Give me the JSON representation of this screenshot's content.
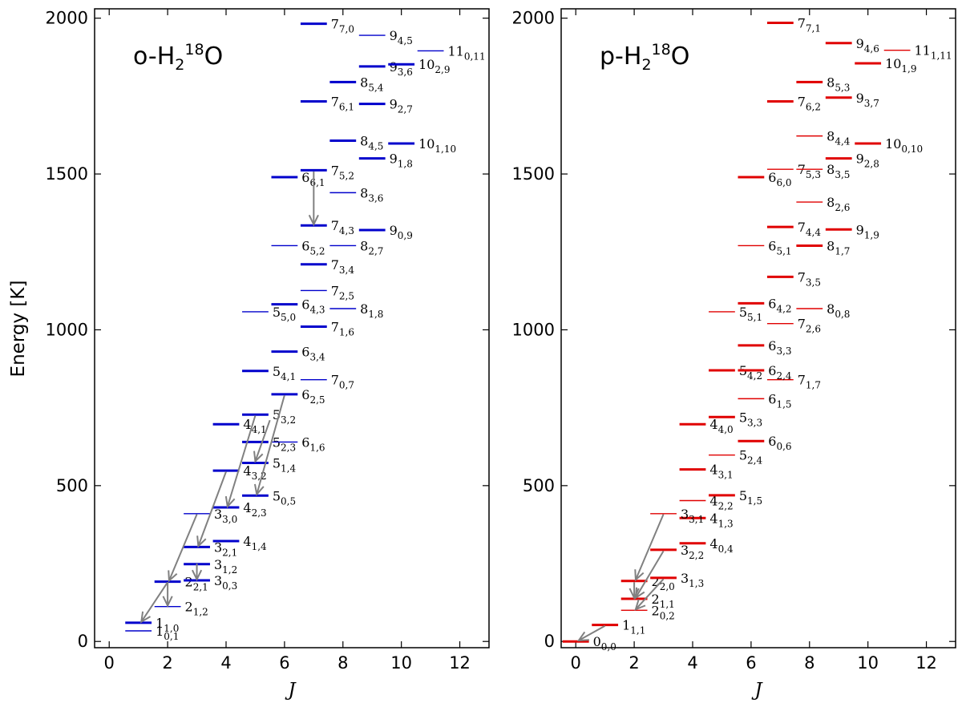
{
  "figure": {
    "ylabel": "Energy [K]",
    "xlabel": "J"
  },
  "chart_data": [
    {
      "type": "energy-level-diagram",
      "title": "o-H2 18O",
      "title_parts": {
        "species": "o-H",
        "sub": "2",
        "sup": "18",
        "atom": "O"
      },
      "xlabel": "J",
      "ylabel": "Energy [K]",
      "xlim": [
        -0.5,
        13
      ],
      "ylim": [
        -20,
        2030
      ],
      "xticks": [
        "0",
        "2",
        "4",
        "6",
        "8",
        "10",
        "12"
      ],
      "yticks": [
        "0",
        "500",
        "1000",
        "1500",
        "2000"
      ],
      "color": "#0000cc",
      "levels": [
        {
          "J": "1",
          "sub": "0,1",
          "E": 34,
          "x": 1,
          "bold": false
        },
        {
          "J": "1",
          "sub": "1,0",
          "E": 60,
          "x": 1,
          "bold": true
        },
        {
          "J": "2",
          "sub": "1,2",
          "E": 112,
          "x": 2,
          "bold": false
        },
        {
          "J": "2",
          "sub": "2,1",
          "E": 192,
          "x": 2,
          "bold": true
        },
        {
          "J": "3",
          "sub": "0,3",
          "E": 196,
          "x": 3,
          "bold": true
        },
        {
          "J": "3",
          "sub": "1,2",
          "E": 248,
          "x": 3,
          "bold": true
        },
        {
          "J": "3",
          "sub": "2,1",
          "E": 303,
          "x": 3,
          "bold": true
        },
        {
          "J": "4",
          "sub": "1,4",
          "E": 322,
          "x": 4,
          "bold": true
        },
        {
          "J": "3",
          "sub": "3,0",
          "E": 410,
          "x": 3,
          "bold": false
        },
        {
          "J": "4",
          "sub": "2,3",
          "E": 430,
          "x": 4,
          "bold": true
        },
        {
          "J": "5",
          "sub": "0,5",
          "E": 468,
          "x": 5,
          "bold": true
        },
        {
          "J": "4",
          "sub": "3,2",
          "E": 548,
          "x": 4,
          "bold": true
        },
        {
          "J": "5",
          "sub": "1,4",
          "E": 573,
          "x": 5,
          "bold": true
        },
        {
          "J": "5",
          "sub": "2,3",
          "E": 640,
          "x": 5,
          "bold": true
        },
        {
          "J": "6",
          "sub": "1,6",
          "E": 640,
          "x": 6,
          "bold": false
        },
        {
          "J": "4",
          "sub": "4,1",
          "E": 697,
          "x": 4,
          "bold": true
        },
        {
          "J": "5",
          "sub": "3,2",
          "E": 728,
          "x": 5,
          "bold": true
        },
        {
          "J": "6",
          "sub": "2,5",
          "E": 793,
          "x": 6,
          "bold": true
        },
        {
          "J": "7",
          "sub": "0,7",
          "E": 840,
          "x": 7,
          "bold": false
        },
        {
          "J": "5",
          "sub": "4,1",
          "E": 868,
          "x": 5,
          "bold": true
        },
        {
          "J": "6",
          "sub": "3,4",
          "E": 930,
          "x": 6,
          "bold": true
        },
        {
          "J": "7",
          "sub": "1,6",
          "E": 1010,
          "x": 7,
          "bold": true
        },
        {
          "J": "5",
          "sub": "5,0",
          "E": 1058,
          "x": 5,
          "bold": false
        },
        {
          "J": "8",
          "sub": "1,8",
          "E": 1068,
          "x": 8,
          "bold": false
        },
        {
          "J": "6",
          "sub": "4,3",
          "E": 1082,
          "x": 6,
          "bold": true
        },
        {
          "J": "7",
          "sub": "2,5",
          "E": 1126,
          "x": 7,
          "bold": false
        },
        {
          "J": "7",
          "sub": "3,4",
          "E": 1210,
          "x": 7,
          "bold": true
        },
        {
          "J": "6",
          "sub": "5,2",
          "E": 1270,
          "x": 6,
          "bold": false
        },
        {
          "J": "8",
          "sub": "2,7",
          "E": 1270,
          "x": 8,
          "bold": false
        },
        {
          "J": "9",
          "sub": "0,9",
          "E": 1320,
          "x": 9,
          "bold": true
        },
        {
          "J": "7",
          "sub": "4,3",
          "E": 1335,
          "x": 7,
          "bold": true
        },
        {
          "J": "8",
          "sub": "3,6",
          "E": 1440,
          "x": 8,
          "bold": false
        },
        {
          "J": "6",
          "sub": "6,1",
          "E": 1490,
          "x": 6,
          "bold": true
        },
        {
          "J": "7",
          "sub": "5,2",
          "E": 1512,
          "x": 7,
          "bold": true
        },
        {
          "J": "9",
          "sub": "1,8",
          "E": 1550,
          "x": 9,
          "bold": true
        },
        {
          "J": "10",
          "sub": "1,10",
          "E": 1598,
          "x": 10,
          "bold": true
        },
        {
          "J": "8",
          "sub": "4,5",
          "E": 1607,
          "x": 8,
          "bold": true
        },
        {
          "J": "9",
          "sub": "2,7",
          "E": 1725,
          "x": 9,
          "bold": true
        },
        {
          "J": "7",
          "sub": "6,1",
          "E": 1733,
          "x": 7,
          "bold": true
        },
        {
          "J": "8",
          "sub": "5,4",
          "E": 1795,
          "x": 8,
          "bold": true
        },
        {
          "J": "9",
          "sub": "3,6",
          "E": 1845,
          "x": 9,
          "bold": true
        },
        {
          "J": "10",
          "sub": "2,9",
          "E": 1852,
          "x": 10,
          "bold": true
        },
        {
          "J": "11",
          "sub": "0,11",
          "E": 1895,
          "x": 11,
          "bold": false
        },
        {
          "J": "9",
          "sub": "4,5",
          "E": 1945,
          "x": 9,
          "bold": false
        },
        {
          "J": "7",
          "sub": "7,0",
          "E": 1982,
          "x": 7,
          "bold": true
        }
      ],
      "transitions": [
        {
          "from": [
            2.0,
            190
          ],
          "to": [
            1.1,
            63
          ]
        },
        {
          "from": [
            2.0,
            190
          ],
          "to": [
            2.0,
            115
          ]
        },
        {
          "from": [
            3.0,
            408
          ],
          "to": [
            2.05,
            195
          ]
        },
        {
          "from": [
            3.0,
            250
          ],
          "to": [
            3.0,
            199
          ]
        },
        {
          "from": [
            4.0,
            545
          ],
          "to": [
            3.05,
            306
          ]
        },
        {
          "from": [
            5.0,
            725
          ],
          "to": [
            4.05,
            433
          ]
        },
        {
          "from": [
            5.5,
            710
          ],
          "to": [
            5.0,
            578
          ]
        },
        {
          "from": [
            6.0,
            790
          ],
          "to": [
            5.05,
            472
          ]
        },
        {
          "from": [
            7.0,
            1508
          ],
          "to": [
            7.0,
            1338
          ]
        }
      ]
    },
    {
      "type": "energy-level-diagram",
      "title": "p-H2 18O",
      "title_parts": {
        "species": "p-H",
        "sub": "2",
        "sup": "18",
        "atom": "O"
      },
      "xlabel": "J",
      "ylabel": "",
      "xlim": [
        -0.5,
        13
      ],
      "ylim": [
        -20,
        2030
      ],
      "xticks": [
        "0",
        "2",
        "4",
        "6",
        "8",
        "10",
        "12"
      ],
      "yticks": [
        "0",
        "500",
        "1000",
        "1500",
        "2000"
      ],
      "color": "#e00000",
      "levels": [
        {
          "J": "0",
          "sub": "0,0",
          "E": 0,
          "x": 0,
          "bold": true
        },
        {
          "J": "1",
          "sub": "1,1",
          "E": 53,
          "x": 1,
          "bold": true
        },
        {
          "J": "2",
          "sub": "0,2",
          "E": 100,
          "x": 2,
          "bold": false
        },
        {
          "J": "2",
          "sub": "1,1",
          "E": 137,
          "x": 2,
          "bold": true
        },
        {
          "J": "2",
          "sub": "2,0",
          "E": 194,
          "x": 2,
          "bold": true
        },
        {
          "J": "3",
          "sub": "1,3",
          "E": 204,
          "x": 3,
          "bold": true
        },
        {
          "J": "3",
          "sub": "2,2",
          "E": 294,
          "x": 3,
          "bold": true
        },
        {
          "J": "4",
          "sub": "0,4",
          "E": 315,
          "x": 4,
          "bold": true
        },
        {
          "J": "4",
          "sub": "1,3",
          "E": 396,
          "x": 4,
          "bold": true
        },
        {
          "J": "3",
          "sub": "3,1",
          "E": 410,
          "x": 3,
          "bold": false
        },
        {
          "J": "4",
          "sub": "2,2",
          "E": 452,
          "x": 4,
          "bold": false
        },
        {
          "J": "5",
          "sub": "1,5",
          "E": 469,
          "x": 5,
          "bold": true
        },
        {
          "J": "4",
          "sub": "3,1",
          "E": 552,
          "x": 4,
          "bold": true
        },
        {
          "J": "5",
          "sub": "2,4",
          "E": 598,
          "x": 5,
          "bold": false
        },
        {
          "J": "6",
          "sub": "0,6",
          "E": 643,
          "x": 6,
          "bold": true
        },
        {
          "J": "4",
          "sub": "4,0",
          "E": 697,
          "x": 4,
          "bold": true
        },
        {
          "J": "5",
          "sub": "3,3",
          "E": 720,
          "x": 5,
          "bold": true
        },
        {
          "J": "6",
          "sub": "1,5",
          "E": 779,
          "x": 6,
          "bold": false
        },
        {
          "J": "7",
          "sub": "1,7",
          "E": 840,
          "x": 7,
          "bold": false
        },
        {
          "J": "5",
          "sub": "4,2",
          "E": 870,
          "x": 5,
          "bold": true
        },
        {
          "J": "6",
          "sub": "2,4",
          "E": 870,
          "x": 6,
          "bold": true
        },
        {
          "J": "6",
          "sub": "3,3",
          "E": 950,
          "x": 6,
          "bold": true
        },
        {
          "J": "7",
          "sub": "2,6",
          "E": 1020,
          "x": 7,
          "bold": false
        },
        {
          "J": "5",
          "sub": "5,1",
          "E": 1058,
          "x": 5,
          "bold": false
        },
        {
          "J": "8",
          "sub": "0,8",
          "E": 1068,
          "x": 8,
          "bold": false
        },
        {
          "J": "6",
          "sub": "4,2",
          "E": 1085,
          "x": 6,
          "bold": true
        },
        {
          "J": "7",
          "sub": "3,5",
          "E": 1170,
          "x": 7,
          "bold": true
        },
        {
          "J": "6",
          "sub": "5,1",
          "E": 1270,
          "x": 6,
          "bold": false
        },
        {
          "J": "8",
          "sub": "1,7",
          "E": 1270,
          "x": 8,
          "bold": true
        },
        {
          "J": "9",
          "sub": "1,9",
          "E": 1322,
          "x": 9,
          "bold": true
        },
        {
          "J": "7",
          "sub": "4,4",
          "E": 1330,
          "x": 7,
          "bold": true
        },
        {
          "J": "8",
          "sub": "2,6",
          "E": 1410,
          "x": 8,
          "bold": false
        },
        {
          "J": "6",
          "sub": "6,0",
          "E": 1490,
          "x": 6,
          "bold": true
        },
        {
          "J": "7",
          "sub": "5,3",
          "E": 1515,
          "x": 7,
          "bold": false
        },
        {
          "J": "8",
          "sub": "3,5",
          "E": 1515,
          "x": 8,
          "bold": false
        },
        {
          "J": "9",
          "sub": "2,8",
          "E": 1550,
          "x": 9,
          "bold": true
        },
        {
          "J": "10",
          "sub": "0,10",
          "E": 1598,
          "x": 10,
          "bold": true
        },
        {
          "J": "8",
          "sub": "4,4",
          "E": 1622,
          "x": 8,
          "bold": false
        },
        {
          "J": "7",
          "sub": "6,2",
          "E": 1733,
          "x": 7,
          "bold": true
        },
        {
          "J": "9",
          "sub": "3,7",
          "E": 1745,
          "x": 9,
          "bold": true
        },
        {
          "J": "8",
          "sub": "5,3",
          "E": 1795,
          "x": 8,
          "bold": true
        },
        {
          "J": "10",
          "sub": "1,9",
          "E": 1855,
          "x": 10,
          "bold": true
        },
        {
          "J": "11",
          "sub": "1,11",
          "E": 1897,
          "x": 11,
          "bold": false
        },
        {
          "J": "9",
          "sub": "4,6",
          "E": 1920,
          "x": 9,
          "bold": true
        },
        {
          "J": "7",
          "sub": "7,1",
          "E": 1985,
          "x": 7,
          "bold": true
        }
      ],
      "transitions": [
        {
          "from": [
            1.0,
            50
          ],
          "to": [
            0.1,
            3
          ]
        },
        {
          "from": [
            3.0,
            408
          ],
          "to": [
            2.05,
            198
          ]
        },
        {
          "from": [
            3.0,
            290
          ],
          "to": [
            2.05,
            140
          ]
        },
        {
          "from": [
            3.0,
            200
          ],
          "to": [
            2.05,
            103
          ]
        },
        {
          "from": [
            2.0,
            190
          ],
          "to": [
            2.0,
            140
          ]
        }
      ]
    }
  ]
}
